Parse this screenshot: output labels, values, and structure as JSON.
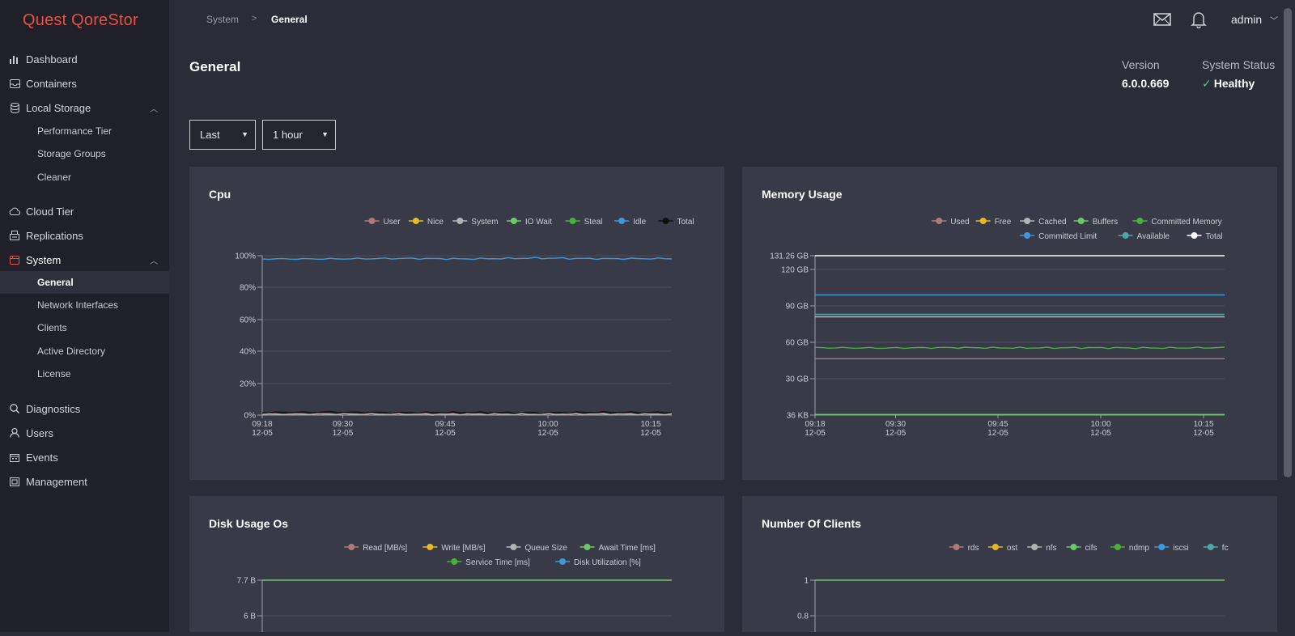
{
  "app": {
    "logo": "Quest QoreStor"
  },
  "sidebar": {
    "items": [
      {
        "label": "Dashboard",
        "icon": "bar-chart-icon"
      },
      {
        "label": "Containers",
        "icon": "inbox-icon"
      },
      {
        "label": "Local Storage",
        "icon": "database-icon",
        "expanded": true
      },
      {
        "label": "Performance Tier"
      },
      {
        "label": "Storage Groups"
      },
      {
        "label": "Cleaner"
      },
      {
        "label": "Cloud Tier",
        "icon": "cloud-icon"
      },
      {
        "label": "Replications",
        "icon": "replication-icon"
      },
      {
        "label": "System",
        "icon": "system-icon",
        "expanded": true
      },
      {
        "label": "General"
      },
      {
        "label": "Network Interfaces"
      },
      {
        "label": "Clients"
      },
      {
        "label": "Active Directory"
      },
      {
        "label": "License"
      },
      {
        "label": "Diagnostics",
        "icon": "search-icon"
      },
      {
        "label": "Users",
        "icon": "user-icon"
      },
      {
        "label": "Events",
        "icon": "calendar-icon"
      },
      {
        "label": "Management",
        "icon": "management-icon"
      }
    ]
  },
  "header": {
    "breadcrumb": [
      "System",
      "General"
    ],
    "breadcrumb_sep": ">",
    "user": "admin",
    "icons": [
      "mail-icon",
      "bell-icon"
    ]
  },
  "page": {
    "title": "General",
    "version_label": "Version",
    "version_value": "6.0.0.669",
    "status_label": "System Status",
    "status_value": "Healthy",
    "status_color": "#4cc38a"
  },
  "filters": {
    "range_type": "Last",
    "range_value": "1 hour"
  },
  "x_ticks": [
    {
      "time": "09:18",
      "date": "12-05"
    },
    {
      "time": "09:30",
      "date": "12-05"
    },
    {
      "time": "09:45",
      "date": "12-05"
    },
    {
      "time": "10:00",
      "date": "12-05"
    },
    {
      "time": "10:15",
      "date": "12-05"
    }
  ],
  "chart_data": [
    {
      "title": "Cpu",
      "type": "line",
      "legend": [
        "User",
        "Nice",
        "System",
        "IO Wait",
        "Steal",
        "Idle",
        "Total"
      ],
      "colors": [
        "#b07a78",
        "#e6b823",
        "#b3b3b3",
        "#6ec86a",
        "#4caf3c",
        "#3f98d8",
        "#111111"
      ],
      "y_ticks": [
        "100%",
        "80%",
        "60%",
        "40%",
        "20%",
        "0%"
      ],
      "ylim": [
        0,
        100
      ],
      "series": [
        {
          "name": "Idle",
          "values": [
            98,
            98,
            98.3,
            98,
            98.5,
            98.1,
            98.2
          ]
        },
        {
          "name": "Total",
          "values": [
            1.5,
            1.8,
            1.4,
            1.6,
            1.3,
            1.7,
            1.5
          ]
        },
        {
          "name": "User",
          "values": [
            0.6,
            0.7,
            0.6,
            0.6,
            0.5,
            0.7,
            0.6
          ]
        },
        {
          "name": "System",
          "values": [
            0.5,
            0.6,
            0.5,
            0.5,
            0.5,
            0.6,
            0.5
          ]
        }
      ]
    },
    {
      "title": "Memory Usage",
      "type": "line",
      "legend": [
        "Used",
        "Free",
        "Cached",
        "Buffers",
        "Committed Memory",
        "Committed Limit",
        "Available",
        "Total"
      ],
      "colors": [
        "#b07a78",
        "#e6b823",
        "#b3b3b3",
        "#6ec86a",
        "#4caf3c",
        "#3f98d8",
        "#4aa9a6",
        "#ffffff"
      ],
      "y_ticks": [
        "131.26 GB",
        "120 GB",
        "90 GB",
        "60 GB",
        "30 GB",
        "36 KB"
      ],
      "series": [
        {
          "name": "Total",
          "values": [
            131.26,
            131.26
          ]
        },
        {
          "name": "Committed Limit",
          "values": [
            99,
            99
          ]
        },
        {
          "name": "Available",
          "values": [
            83,
            83
          ]
        },
        {
          "name": "Cached",
          "values": [
            81,
            81
          ]
        },
        {
          "name": "Committed Memory",
          "values": [
            55.5,
            55.3,
            55.6,
            55.4,
            55.5,
            55.3,
            55.6
          ]
        },
        {
          "name": "Used",
          "values": [
            46.5,
            46.5
          ]
        },
        {
          "name": "Free",
          "values": [
            0.5,
            0.5
          ]
        },
        {
          "name": "Buffers",
          "values": [
            0.3,
            0.3
          ]
        }
      ]
    },
    {
      "title": "Disk Usage Os",
      "type": "line",
      "legend": [
        "Read [MB/s]",
        "Write [MB/s]",
        "Queue Size",
        "Await Time [ms]",
        "Service Time [ms]",
        "Disk Utilization [%]"
      ],
      "colors": [
        "#b07a78",
        "#e6b823",
        "#b3b3b3",
        "#6ec86a",
        "#4caf3c",
        "#3f98d8"
      ],
      "y_ticks": [
        "7.7 B",
        "6 B"
      ],
      "series": [
        {
          "name": "Await Time [ms]",
          "values": [
            7.7,
            7.7
          ]
        }
      ]
    },
    {
      "title": "Number Of Clients",
      "type": "line",
      "legend": [
        "rds",
        "ost",
        "nfs",
        "cifs",
        "ndmp",
        "iscsi",
        "fc"
      ],
      "colors": [
        "#b07a78",
        "#e6b823",
        "#b3b3b3",
        "#6ec86a",
        "#4caf3c",
        "#3f98d8",
        "#4aa9a6"
      ],
      "y_ticks": [
        "1",
        "0.8"
      ],
      "series": [
        {
          "name": "cifs",
          "values": [
            1,
            1
          ]
        }
      ]
    }
  ]
}
